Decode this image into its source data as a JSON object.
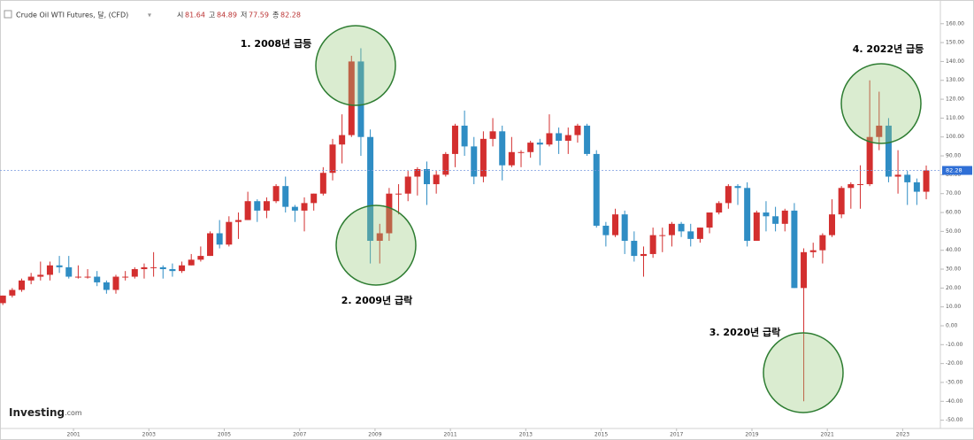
{
  "header": {
    "title": "Crude Oil WTI Futures, 달, (CFD)",
    "ohlc": [
      {
        "label": "시",
        "value": 81.64
      },
      {
        "label": "고",
        "value": 84.89
      },
      {
        "label": "저",
        "value": 77.59
      },
      {
        "label": "종",
        "value": 82.28
      }
    ]
  },
  "logo": "Investing",
  "logo_suffix": ".com",
  "annotations": [
    "1. 2008년 급등",
    "2. 2009년 급락",
    "3. 2020년 급락",
    "4. 2022년 급등"
  ],
  "chart_data": {
    "type": "candlestick",
    "up_color": "#d32f2f",
    "down_color": "#2f8dc4",
    "grid": false,
    "xlim": [
      1999.05,
      2024.0
    ],
    "xticks": [
      2001,
      2003,
      2005,
      2007,
      2009,
      2011,
      2013,
      2015,
      2017,
      2019,
      2021,
      2023
    ],
    "ylim": [
      -54.4,
      168.8
    ],
    "yticks": [
      {
        "value": -50,
        "label": "-50.00"
      },
      {
        "value": -40,
        "label": "-40.00"
      },
      {
        "value": -30,
        "label": "-30.00"
      },
      {
        "value": -20,
        "label": "-20.00"
      },
      {
        "value": -10,
        "label": "-10.00"
      },
      {
        "value": 0,
        "label": "0.00"
      },
      {
        "value": 10,
        "label": "10.00"
      },
      {
        "value": 20,
        "label": "20.00"
      },
      {
        "value": 30,
        "label": "30.00"
      },
      {
        "value": 40,
        "label": "40.00"
      },
      {
        "value": 50,
        "label": "50.00"
      },
      {
        "value": 60,
        "label": "60.00"
      },
      {
        "value": 70,
        "label": "70.00"
      },
      {
        "value": 80,
        "label": "80.00"
      },
      {
        "value": 90,
        "label": "90.00"
      },
      {
        "value": 100,
        "label": "100.00"
      },
      {
        "value": 110,
        "label": "110.00"
      },
      {
        "value": 120,
        "label": "120.00"
      },
      {
        "value": 130,
        "label": "130.00"
      },
      {
        "value": 140,
        "label": "140.00"
      },
      {
        "value": 150,
        "label": "150.00"
      },
      {
        "value": 160,
        "label": "160.00"
      }
    ],
    "x": [
      1999.125,
      1999.375,
      1999.625,
      1999.875,
      2000.125,
      2000.375,
      2000.625,
      2000.875,
      2001.125,
      2001.375,
      2001.625,
      2001.875,
      2002.125,
      2002.375,
      2002.625,
      2002.875,
      2003.125,
      2003.375,
      2003.625,
      2003.875,
      2004.125,
      2004.375,
      2004.625,
      2004.875,
      2005.125,
      2005.375,
      2005.625,
      2005.875,
      2006.125,
      2006.375,
      2006.625,
      2006.875,
      2007.125,
      2007.375,
      2007.625,
      2007.875,
      2008.125,
      2008.375,
      2008.625,
      2008.875,
      2009.125,
      2009.375,
      2009.625,
      2009.875,
      2010.125,
      2010.375,
      2010.625,
      2010.875,
      2011.125,
      2011.375,
      2011.625,
      2011.875,
      2012.125,
      2012.375,
      2012.625,
      2012.875,
      2013.125,
      2013.375,
      2013.625,
      2013.875,
      2014.125,
      2014.375,
      2014.625,
      2014.875,
      2015.125,
      2015.375,
      2015.625,
      2015.875,
      2016.125,
      2016.375,
      2016.625,
      2016.875,
      2017.125,
      2017.375,
      2017.625,
      2017.875,
      2018.125,
      2018.375,
      2018.625,
      2018.875,
      2019.125,
      2019.375,
      2019.625,
      2019.875,
      2020.125,
      2020.375,
      2020.625,
      2020.875,
      2021.125,
      2021.375,
      2021.625,
      2021.875,
      2022.125,
      2022.375,
      2022.625,
      2022.875,
      2023.125,
      2023.375,
      2023.625
    ],
    "open": [
      12,
      16,
      19,
      24,
      26,
      27,
      32,
      31,
      26,
      26,
      26,
      23,
      19,
      26,
      26,
      30,
      31,
      31,
      30,
      29,
      32,
      35,
      37,
      49,
      43,
      55,
      56,
      66,
      61,
      66,
      74,
      63,
      61,
      65,
      70,
      81,
      96,
      101,
      140,
      100,
      45,
      49,
      70,
      70,
      79,
      83,
      75,
      80,
      91,
      106,
      95,
      79,
      99,
      103,
      85,
      92,
      92,
      97,
      96,
      102,
      98,
      101,
      106,
      91,
      53,
      48,
      59,
      45,
      37,
      38,
      48,
      48,
      54,
      50,
      46,
      52,
      60,
      65,
      74,
      73,
      45,
      60,
      58,
      54,
      61,
      20,
      39,
      40,
      48,
      59,
      73,
      75,
      75,
      100,
      106,
      79,
      80,
      76,
      71
    ],
    "high": [
      16,
      20,
      25,
      28,
      34,
      34,
      37,
      37,
      32,
      30,
      29,
      24,
      27,
      29,
      31,
      33,
      39,
      32,
      33,
      34,
      38,
      42,
      50,
      56,
      58,
      60,
      71,
      67,
      68,
      75,
      79,
      64,
      68,
      70,
      84,
      99,
      112,
      143,
      147,
      104,
      54,
      73,
      75,
      82,
      84,
      87,
      82,
      92,
      107,
      114,
      100,
      103,
      110,
      106,
      100,
      93,
      98,
      99,
      112,
      105,
      105,
      107,
      107,
      93,
      55,
      62,
      61,
      50,
      42,
      52,
      52,
      55,
      55,
      54,
      52,
      60,
      66,
      75,
      75,
      76,
      61,
      66,
      63,
      62,
      65,
      41,
      44,
      49,
      67,
      74,
      76,
      85,
      130,
      124,
      110,
      93,
      82,
      78,
      84.89
    ],
    "low": [
      11,
      15,
      18,
      22,
      24,
      24,
      28,
      25,
      25,
      25,
      21,
      17,
      17,
      24,
      25,
      25,
      26,
      25,
      26,
      28,
      32,
      34,
      37,
      41,
      42,
      46,
      56,
      55,
      57,
      65,
      60,
      55,
      50,
      61,
      69,
      77,
      86,
      100,
      90,
      33,
      33,
      45,
      59,
      66,
      69,
      64,
      70,
      79,
      84,
      90,
      75,
      76,
      95,
      77,
      84,
      84,
      89,
      85,
      95,
      91,
      91,
      97,
      90,
      52,
      42,
      47,
      38,
      34,
      26,
      36,
      39,
      42,
      47,
      42,
      44,
      49,
      59,
      62,
      64,
      42,
      45,
      50,
      50,
      50,
      20,
      -40,
      36,
      33,
      47,
      57,
      62,
      62,
      74,
      93,
      76,
      70,
      64,
      64,
      67
    ],
    "close": [
      16,
      19,
      24,
      26,
      27,
      32,
      31,
      26,
      26,
      26,
      23,
      19,
      26,
      26,
      30,
      31,
      31,
      30,
      29,
      32,
      35,
      37,
      49,
      43,
      55,
      56,
      66,
      61,
      66,
      74,
      63,
      61,
      65,
      70,
      81,
      96,
      101,
      140,
      100,
      45,
      49,
      70,
      70,
      79,
      83,
      75,
      80,
      91,
      106,
      95,
      79,
      99,
      103,
      85,
      92,
      92,
      97,
      96,
      102,
      98,
      101,
      106,
      91,
      53,
      48,
      59,
      45,
      37,
      38,
      48,
      48,
      54,
      50,
      46,
      52,
      60,
      65,
      74,
      73,
      45,
      60,
      58,
      54,
      61,
      20,
      39,
      40,
      48,
      59,
      73,
      75,
      75,
      100,
      106,
      79,
      80,
      76,
      71,
      82.28
    ]
  }
}
